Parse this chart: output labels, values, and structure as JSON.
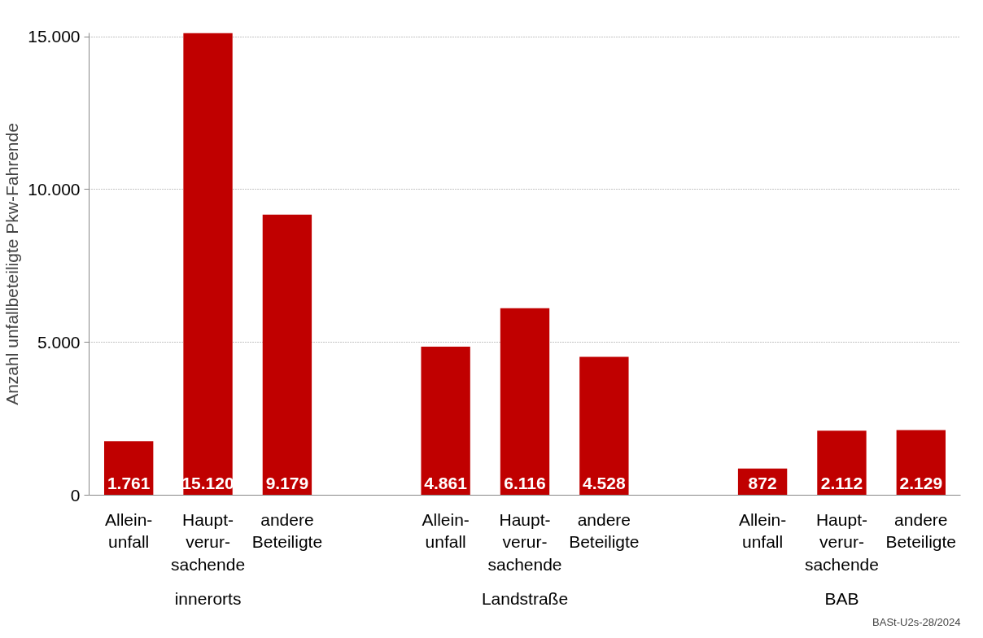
{
  "chart_data": {
    "type": "bar",
    "ylabel": "Anzahl unfallbeteiligte Pkw-Fahrende",
    "categories": [
      "Allein-\nunfall",
      "Haupt-\nverur-\nsachende",
      "andere\nBeteiligte",
      "Allein-\nunfall",
      "Haupt-\nverur-\nsachende",
      "andere\nBeteiligte",
      "Allein-\nunfall",
      "Haupt-\nverur-\nsachende",
      "andere\nBeteiligte"
    ],
    "values": [
      1761,
      15120,
      9179,
      4861,
      6116,
      4528,
      872,
      2112,
      2129
    ],
    "color": "#c00000",
    "ylim": [
      0,
      15120
    ],
    "yticks": [
      {
        "value": 0,
        "label": "0"
      },
      {
        "value": 5000,
        "label": "5.000"
      },
      {
        "value": 10000,
        "label": "10.000"
      },
      {
        "value": 15000,
        "label": "15.000"
      }
    ],
    "grid": "y",
    "value_labels": [
      "1.761",
      "15.120",
      "9.179",
      "4.861",
      "6.116",
      "4.528",
      "872",
      "2.112",
      "2.129"
    ],
    "annotations": [
      "innerorts",
      "Landstraße",
      "BAB",
      "BASt-U2s-28/2024"
    ]
  }
}
